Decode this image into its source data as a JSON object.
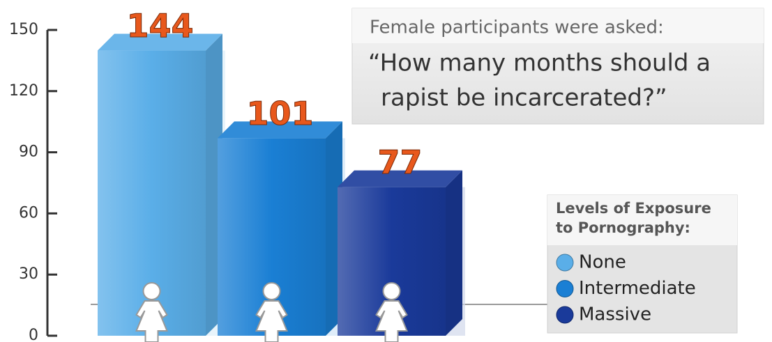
{
  "chart_data": {
    "type": "bar3d",
    "prompt": "Female participants were asked:",
    "question": [
      "“How many months should a",
      "rapist be incarcerated?”"
    ],
    "legend_title": [
      "Levels of Exposure",
      "to Pornography:"
    ],
    "series": [
      {
        "name": "None",
        "color": "#5aaee8",
        "values": [
          144
        ]
      },
      {
        "name": "Intermediate",
        "color": "#1a7fd4",
        "values": [
          101
        ]
      },
      {
        "name": "Massive",
        "color": "#1a3a9a",
        "values": [
          77
        ]
      }
    ],
    "value_color": "#e8581c",
    "ylim": [
      0,
      150
    ],
    "yticks": [
      0,
      30,
      60,
      90,
      120,
      150
    ]
  }
}
